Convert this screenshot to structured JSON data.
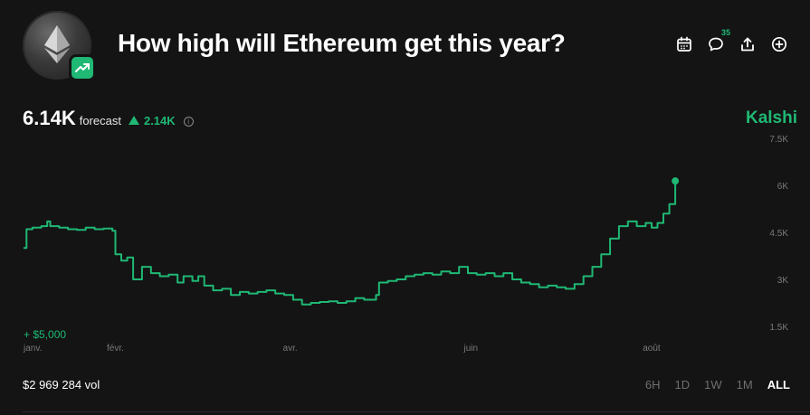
{
  "market": {
    "title": "How high will Ethereum get this year?",
    "comment_count": "35",
    "brand": "Kalshi"
  },
  "forecast": {
    "value": "6.14K",
    "label": "forecast",
    "change": "2.14K"
  },
  "volume": "$2 969 284 vol",
  "time_ranges": [
    "6H",
    "1D",
    "1W",
    "1M",
    "ALL"
  ],
  "active_range": "ALL",
  "icons": [
    "ethereum-logo",
    "trending-up-icon",
    "calendar-icon",
    "comment-icon",
    "share-icon",
    "add-icon",
    "info-icon"
  ],
  "colors": {
    "accent": "#1fb874",
    "background": "#141414",
    "muted": "#6f6f6f"
  },
  "chart_data": {
    "type": "line",
    "series": [
      {
        "values": [
          [
            "2025-01-01",
            4000
          ],
          [
            "2025-01-02",
            4600
          ],
          [
            "2025-01-04",
            4650
          ],
          [
            "2025-01-07",
            4700
          ],
          [
            "2025-01-09",
            4850
          ],
          [
            "2025-01-10",
            4700
          ],
          [
            "2025-01-13",
            4650
          ],
          [
            "2025-01-16",
            4600
          ],
          [
            "2025-01-19",
            4580
          ],
          [
            "2025-01-22",
            4650
          ],
          [
            "2025-01-25",
            4600
          ],
          [
            "2025-01-28",
            4620
          ],
          [
            "2025-01-31",
            4550
          ],
          [
            "2025-02-01",
            3800
          ],
          [
            "2025-02-03",
            3600
          ],
          [
            "2025-02-05",
            3700
          ],
          [
            "2025-02-07",
            3000
          ],
          [
            "2025-02-10",
            3400
          ],
          [
            "2025-02-13",
            3200
          ],
          [
            "2025-02-16",
            3100
          ],
          [
            "2025-02-19",
            3150
          ],
          [
            "2025-02-22",
            2900
          ],
          [
            "2025-02-24",
            3100
          ],
          [
            "2025-02-27",
            2950
          ],
          [
            "2025-03-01",
            3100
          ],
          [
            "2025-03-03",
            2800
          ],
          [
            "2025-03-06",
            2650
          ],
          [
            "2025-03-09",
            2700
          ],
          [
            "2025-03-12",
            2500
          ],
          [
            "2025-03-15",
            2600
          ],
          [
            "2025-03-18",
            2550
          ],
          [
            "2025-03-21",
            2600
          ],
          [
            "2025-03-24",
            2650
          ],
          [
            "2025-03-27",
            2550
          ],
          [
            "2025-03-30",
            2500
          ],
          [
            "2025-04-02",
            2350
          ],
          [
            "2025-04-05",
            2200
          ],
          [
            "2025-04-08",
            2250
          ],
          [
            "2025-04-11",
            2280
          ],
          [
            "2025-04-14",
            2300
          ],
          [
            "2025-04-17",
            2250
          ],
          [
            "2025-04-20",
            2300
          ],
          [
            "2025-04-23",
            2400
          ],
          [
            "2025-04-26",
            2350
          ],
          [
            "2025-04-30",
            2500
          ],
          [
            "2025-05-01",
            2900
          ],
          [
            "2025-05-04",
            2950
          ],
          [
            "2025-05-07",
            3000
          ],
          [
            "2025-05-10",
            3100
          ],
          [
            "2025-05-13",
            3150
          ],
          [
            "2025-05-16",
            3200
          ],
          [
            "2025-05-19",
            3150
          ],
          [
            "2025-05-22",
            3250
          ],
          [
            "2025-05-25",
            3200
          ],
          [
            "2025-05-28",
            3400
          ],
          [
            "2025-05-31",
            3200
          ],
          [
            "2025-06-03",
            3150
          ],
          [
            "2025-06-06",
            3200
          ],
          [
            "2025-06-09",
            3100
          ],
          [
            "2025-06-12",
            3200
          ],
          [
            "2025-06-15",
            3000
          ],
          [
            "2025-06-18",
            2900
          ],
          [
            "2025-06-21",
            2850
          ],
          [
            "2025-06-24",
            2750
          ],
          [
            "2025-06-27",
            2800
          ],
          [
            "2025-06-30",
            2750
          ],
          [
            "2025-07-03",
            2700
          ],
          [
            "2025-07-06",
            2850
          ],
          [
            "2025-07-09",
            3100
          ],
          [
            "2025-07-12",
            3400
          ],
          [
            "2025-07-15",
            3800
          ],
          [
            "2025-07-18",
            4300
          ],
          [
            "2025-07-21",
            4700
          ],
          [
            "2025-07-24",
            4850
          ],
          [
            "2025-07-27",
            4700
          ],
          [
            "2025-07-30",
            4800
          ],
          [
            "2025-08-01",
            4650
          ],
          [
            "2025-08-03",
            4800
          ],
          [
            "2025-08-05",
            5100
          ],
          [
            "2025-08-07",
            5400
          ],
          [
            "2025-08-09",
            6140
          ]
        ]
      }
    ],
    "x_ticks": [
      "janv.",
      "févr.",
      "avr.",
      "juin",
      "août"
    ],
    "x_tick_dates": [
      "2025-01-01",
      "2025-02-01",
      "2025-04-01",
      "2025-06-01",
      "2025-08-01"
    ],
    "y_ticks": [
      "7.5K",
      "6K",
      "4.5K",
      "3K",
      "1.5K"
    ],
    "y_tick_values": [
      7500,
      6000,
      4500,
      3000,
      1500
    ],
    "ylim": [
      1500,
      7500
    ],
    "xlim": [
      "2025-01-01",
      "2025-08-31"
    ],
    "annotation": "+ $5,000",
    "color": "#1fb874"
  }
}
